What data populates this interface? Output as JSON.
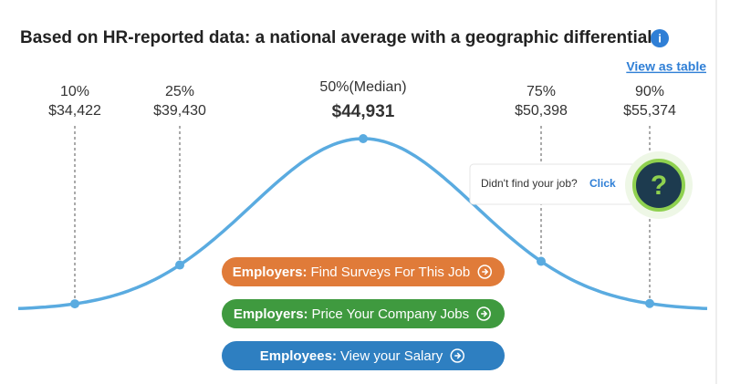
{
  "header": {
    "title": "Based on HR-reported data: a national average with a geographic differential",
    "info": "i",
    "link": "View as table"
  },
  "percentiles": [
    {
      "label": "10%",
      "value": "$34,422"
    },
    {
      "label": "25%",
      "value": "$39,430"
    },
    {
      "label": "50%(Median)",
      "value": "$44,931"
    },
    {
      "label": "75%",
      "value": "$50,398"
    },
    {
      "label": "90%",
      "value": "$55,374"
    }
  ],
  "popup": {
    "text": "Didn't find your job?",
    "link": "Click",
    "icon": "?"
  },
  "buttons": [
    {
      "strong": "Employers:",
      "text": "Find Surveys For This Job"
    },
    {
      "strong": "Employers:",
      "text": "Price Your Company Jobs"
    },
    {
      "strong": "Employees:",
      "text": "View your Salary"
    }
  ]
}
